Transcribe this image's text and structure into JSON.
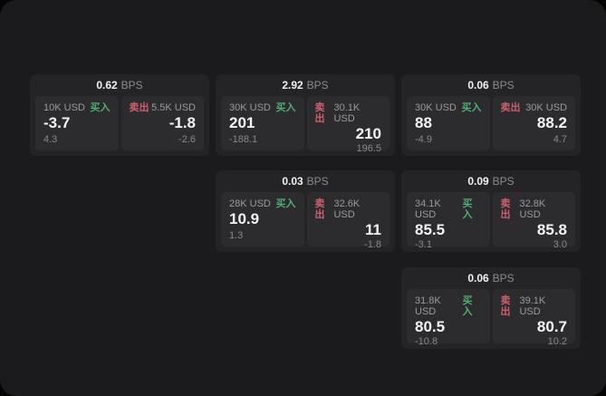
{
  "labels": {
    "bps_unit": "BPS",
    "buy": "买入",
    "sell": "卖出"
  },
  "colors": {
    "outer_background": "#050505",
    "page_background": "#1b1b1d",
    "card_background": "#242427",
    "panel_background": "#2c2c2f",
    "buy_green": "#4fae73",
    "sell_red": "#d05f6d",
    "value_white": "#f4f4f4",
    "muted_gray": "#9b9b9d"
  },
  "cards": [
    {
      "bps": "0.62",
      "buy": {
        "amount": "10K USD",
        "price": "-3.7",
        "delta": "4.3"
      },
      "sell": {
        "amount": "5.5K USD",
        "price": "-1.8",
        "delta": "-2.6"
      }
    },
    {
      "bps": "2.92",
      "buy": {
        "amount": "30K USD",
        "price": "201",
        "delta": "-188.1"
      },
      "sell": {
        "amount": "30.1K USD",
        "price": "210",
        "delta": "196.5"
      }
    },
    {
      "bps": "0.06",
      "buy": {
        "amount": "30K USD",
        "price": "88",
        "delta": "-4.9"
      },
      "sell": {
        "amount": "30K USD",
        "price": "88.2",
        "delta": "4.7"
      }
    },
    {
      "bps": "0.03",
      "buy": {
        "amount": "28K USD",
        "price": "10.9",
        "delta": "1.3"
      },
      "sell": {
        "amount": "32.6K USD",
        "price": "11",
        "delta": "-1.8"
      }
    },
    {
      "bps": "0.09",
      "buy": {
        "amount": "34.1K USD",
        "price": "85.5",
        "delta": "-3.1"
      },
      "sell": {
        "amount": "32.8K USD",
        "price": "85.8",
        "delta": "3.0"
      }
    },
    {
      "bps": "0.06",
      "buy": {
        "amount": "31.8K USD",
        "price": "80.5",
        "delta": "-10.8"
      },
      "sell": {
        "amount": "39.1K USD",
        "price": "80.7",
        "delta": "10.2"
      }
    }
  ]
}
